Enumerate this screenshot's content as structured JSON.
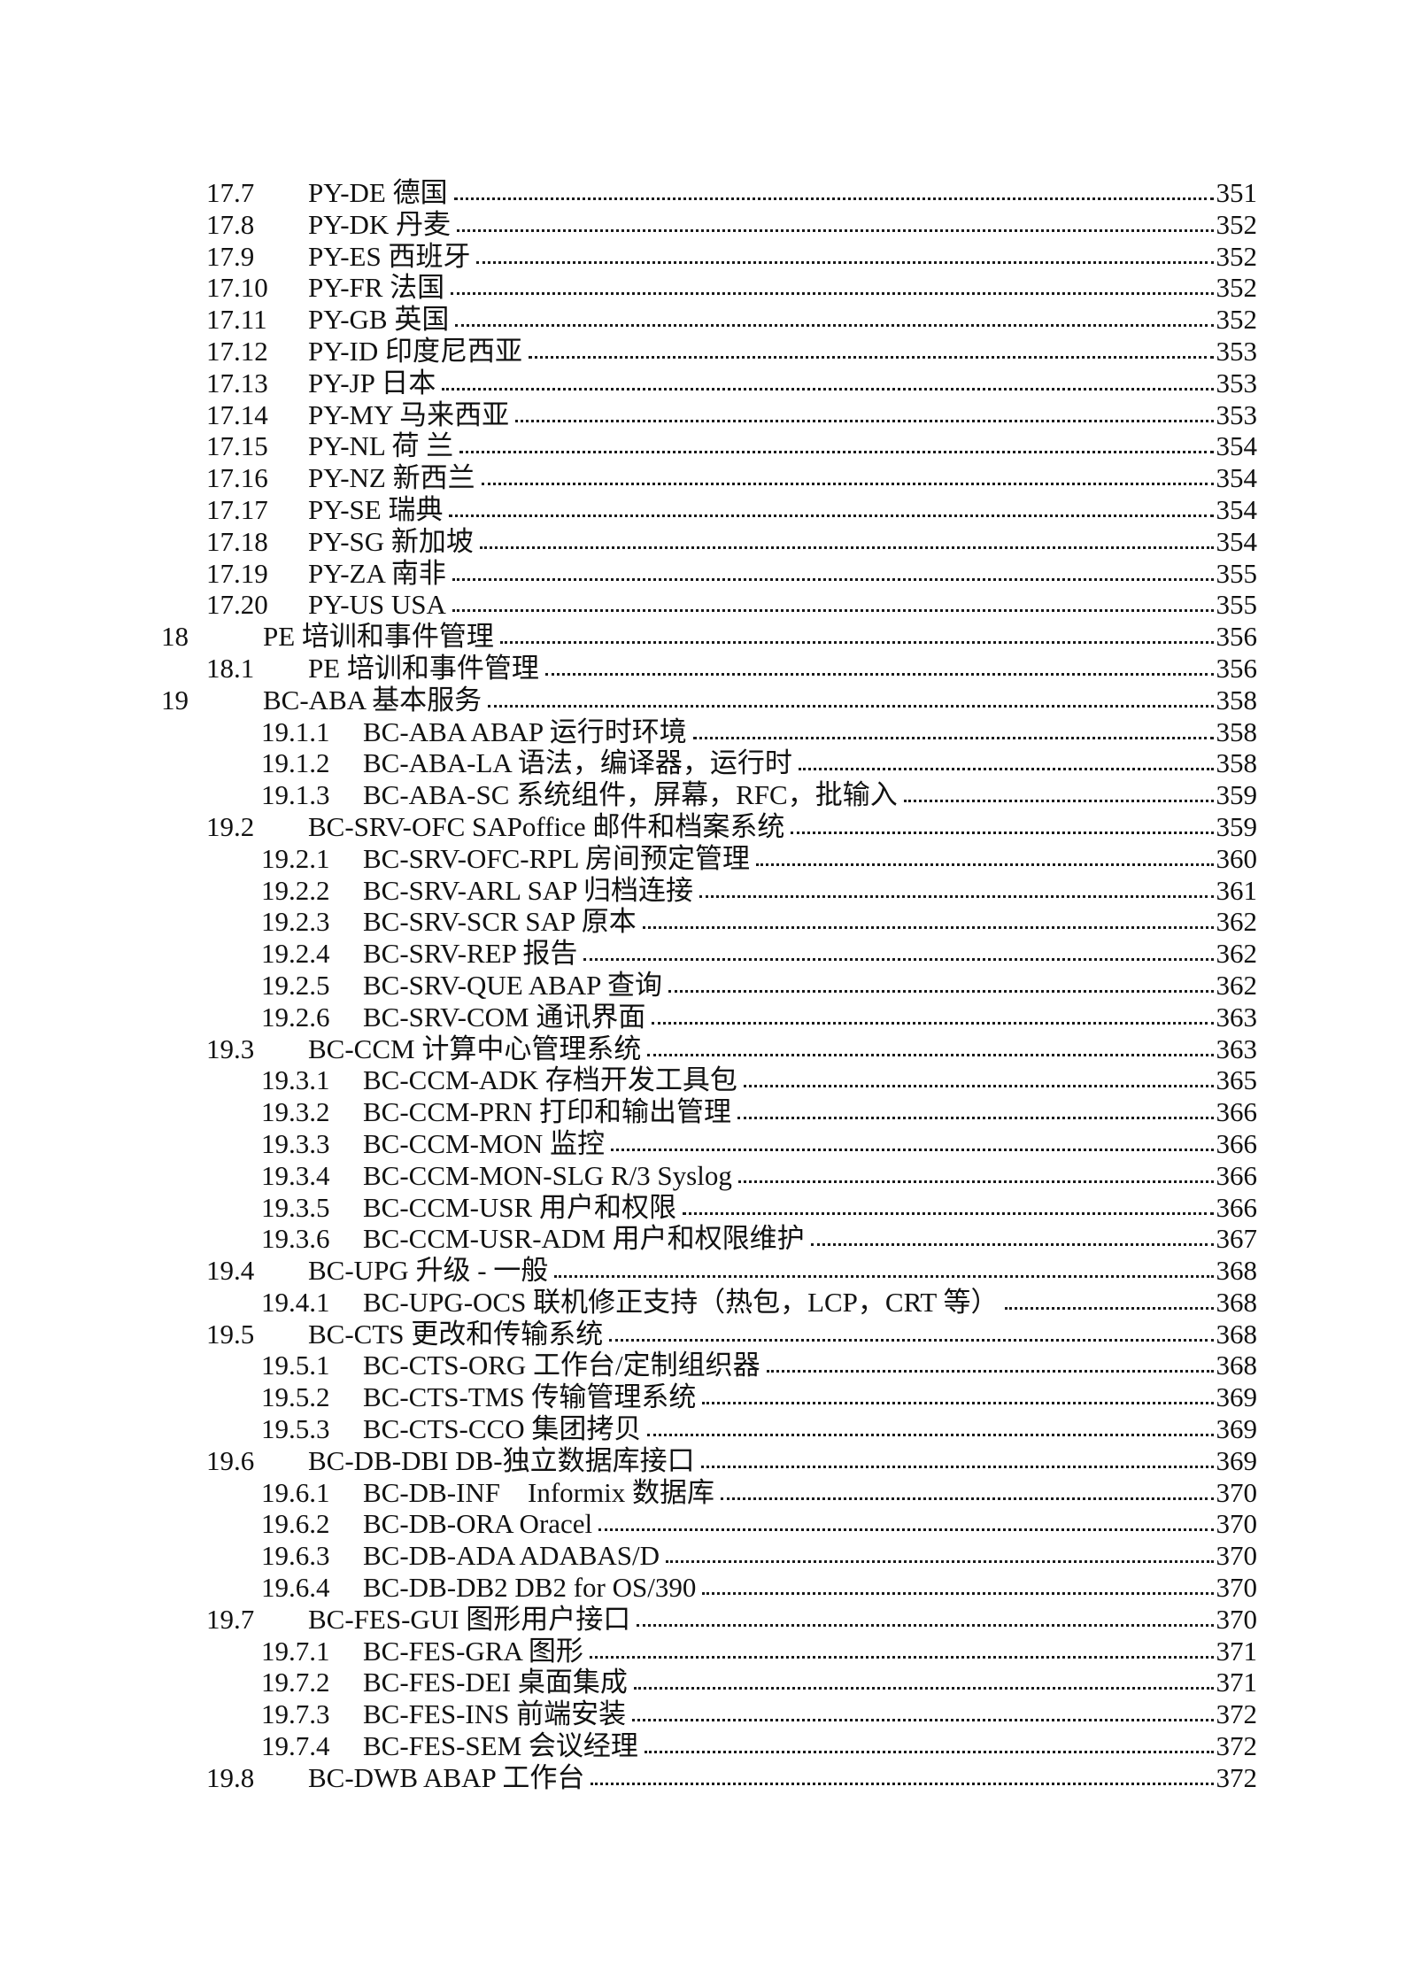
{
  "page": {
    "background_color": "#ffffff",
    "text_color": "#111111",
    "dot_leader_color": "#1a1a1a"
  },
  "toc": {
    "entries": [
      {
        "number": "17.7",
        "title": "PY-DE 德国",
        "page": "351",
        "level": 2
      },
      {
        "number": "17.8",
        "title": "PY-DK 丹麦",
        "page": "352",
        "level": 2
      },
      {
        "number": "17.9",
        "title": "PY-ES 西班牙",
        "page": "352",
        "level": 2
      },
      {
        "number": "17.10",
        "title": "PY-FR 法国",
        "page": "352",
        "level": 2
      },
      {
        "number": "17.11",
        "title": "PY-GB 英国",
        "page": "352",
        "level": 2
      },
      {
        "number": "17.12",
        "title": "PY-ID 印度尼西亚",
        "page": "353",
        "level": 2
      },
      {
        "number": "17.13",
        "title": "PY-JP 日本",
        "page": "353",
        "level": 2
      },
      {
        "number": "17.14",
        "title": "PY-MY 马来西亚",
        "page": "353",
        "level": 2
      },
      {
        "number": "17.15",
        "title": "PY-NL 荷 兰",
        "page": "354",
        "level": 2
      },
      {
        "number": "17.16",
        "title": "PY-NZ 新西兰",
        "page": "354",
        "level": 2
      },
      {
        "number": "17.17",
        "title": "PY-SE 瑞典",
        "page": "354",
        "level": 2
      },
      {
        "number": "17.18",
        "title": "PY-SG 新加坡",
        "page": "354",
        "level": 2
      },
      {
        "number": "17.19",
        "title": "PY-ZA 南非",
        "page": "355",
        "level": 2
      },
      {
        "number": "17.20",
        "title": "PY-US USA",
        "page": "355",
        "level": 2
      },
      {
        "number": "18",
        "title": "PE 培训和事件管理",
        "page": "356",
        "level": 1
      },
      {
        "number": "18.1",
        "title": "PE 培训和事件管理",
        "page": "356",
        "level": 2
      },
      {
        "number": "19",
        "title": "BC-ABA 基本服务",
        "page": "358",
        "level": 1
      },
      {
        "number": "19.1.1",
        "title": "BC-ABA ABAP 运行时环境",
        "page": "358",
        "level": 3
      },
      {
        "number": "19.1.2",
        "title": "BC-ABA-LA 语法，编译器，运行时",
        "page": "358",
        "level": 3
      },
      {
        "number": "19.1.3",
        "title": "BC-ABA-SC 系统组件，屏幕，RFC，批输入",
        "page": "359",
        "level": 3
      },
      {
        "number": "19.2",
        "title": "BC-SRV-OFC SAPoffice 邮件和档案系统",
        "page": "359",
        "level": 2
      },
      {
        "number": "19.2.1",
        "title": "BC-SRV-OFC-RPL 房间预定管理",
        "page": "360",
        "level": 3
      },
      {
        "number": "19.2.2",
        "title": "BC-SRV-ARL SAP 归档连接",
        "page": "361",
        "level": 3
      },
      {
        "number": "19.2.3",
        "title": "BC-SRV-SCR SAP 原本",
        "page": "362",
        "level": 3
      },
      {
        "number": "19.2.4",
        "title": "BC-SRV-REP 报告",
        "page": "362",
        "level": 3
      },
      {
        "number": "19.2.5",
        "title": "BC-SRV-QUE ABAP 查询",
        "page": "362",
        "level": 3
      },
      {
        "number": "19.2.6",
        "title": "BC-SRV-COM 通讯界面",
        "page": "363",
        "level": 3
      },
      {
        "number": "19.3",
        "title": "BC-CCM 计算中心管理系统",
        "page": "363",
        "level": 2
      },
      {
        "number": "19.3.1",
        "title": "BC-CCM-ADK 存档开发工具包",
        "page": "365",
        "level": 3
      },
      {
        "number": "19.3.2",
        "title": "BC-CCM-PRN 打印和输出管理",
        "page": "366",
        "level": 3
      },
      {
        "number": "19.3.3",
        "title": "BC-CCM-MON 监控",
        "page": "366",
        "level": 3
      },
      {
        "number": "19.3.4",
        "title": "BC-CCM-MON-SLG R/3 Syslog",
        "page": "366",
        "level": 3
      },
      {
        "number": "19.3.5",
        "title": "BC-CCM-USR 用户和权限",
        "page": "366",
        "level": 3
      },
      {
        "number": "19.3.6",
        "title": "BC-CCM-USR-ADM 用户和权限维护",
        "page": "367",
        "level": 3
      },
      {
        "number": "19.4",
        "title": "BC-UPG 升级 - 一般",
        "page": "368",
        "level": 2
      },
      {
        "number": "19.4.1",
        "title": "BC-UPG-OCS 联机修正支持（热包，LCP，CRT 等）",
        "page": "368",
        "level": 3
      },
      {
        "number": "19.5",
        "title": "BC-CTS 更改和传输系统",
        "page": "368",
        "level": 2
      },
      {
        "number": "19.5.1",
        "title": "BC-CTS-ORG 工作台/定制组织器",
        "page": "368",
        "level": 3
      },
      {
        "number": "19.5.2",
        "title": "BC-CTS-TMS 传输管理系统",
        "page": "369",
        "level": 3
      },
      {
        "number": "19.5.3",
        "title": "BC-CTS-CCO 集团拷贝",
        "page": "369",
        "level": 3
      },
      {
        "number": "19.6",
        "title": "BC-DB-DBI DB-独立数据库接口",
        "page": "369",
        "level": 2
      },
      {
        "number": "19.6.1",
        "title": "BC-DB-INF    Informix 数据库",
        "page": "370",
        "level": 3
      },
      {
        "number": "19.6.2",
        "title": "BC-DB-ORA Oracel",
        "page": "370",
        "level": 3
      },
      {
        "number": "19.6.3",
        "title": "BC-DB-ADA ADABAS/D",
        "page": "370",
        "level": 3
      },
      {
        "number": "19.6.4",
        "title": "BC-DB-DB2 DB2 for OS/390",
        "page": "370",
        "level": 3
      },
      {
        "number": "19.7",
        "title": "BC-FES-GUI 图形用户接口",
        "page": "370",
        "level": 2
      },
      {
        "number": "19.7.1",
        "title": "BC-FES-GRA 图形",
        "page": "371",
        "level": 3
      },
      {
        "number": "19.7.2",
        "title": "BC-FES-DEI 桌面集成",
        "page": "371",
        "level": 3
      },
      {
        "number": "19.7.3",
        "title": "BC-FES-INS 前端安装",
        "page": "372",
        "level": 3
      },
      {
        "number": "19.7.4",
        "title": "BC-FES-SEM 会议经理",
        "page": "372",
        "level": 3
      },
      {
        "number": "19.8",
        "title": "BC-DWB ABAP 工作台",
        "page": "372",
        "level": 2
      }
    ]
  }
}
